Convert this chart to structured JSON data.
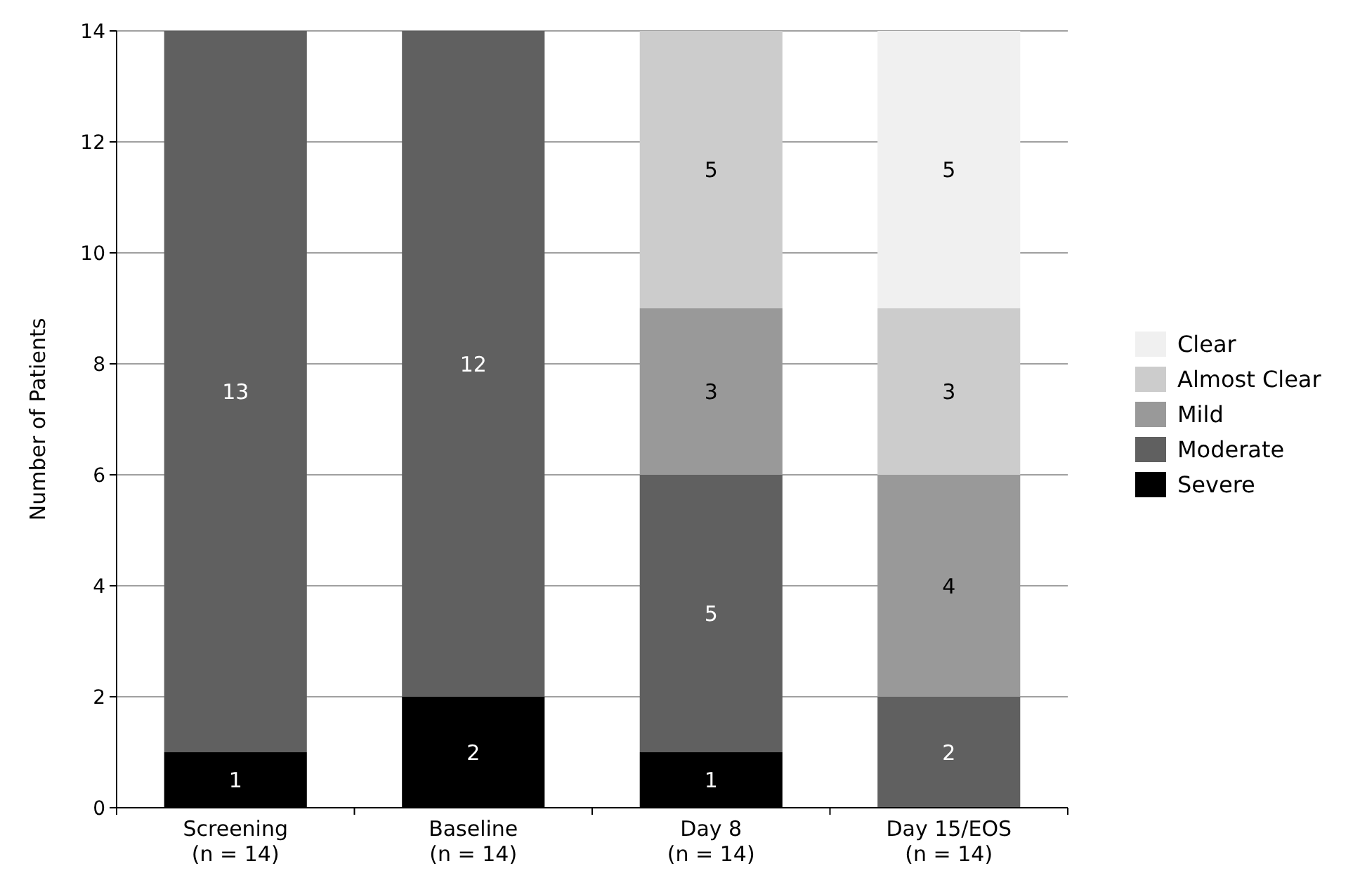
{
  "chart_data": {
    "type": "bar",
    "ylabel": "Number of Patients",
    "categories": [
      "Screening\n(n = 14)",
      "Baseline\n(n = 14)",
      "Day 8\n(n = 14)",
      "Day 15/EOS\n(n = 14)"
    ],
    "series": [
      {
        "name": "Severe",
        "color": "#000000",
        "values": [
          1,
          2,
          1,
          0
        ],
        "value_labels": [
          "1",
          "2",
          "1",
          null
        ]
      },
      {
        "name": "Moderate",
        "color": "#606060",
        "values": [
          13,
          12,
          5,
          2
        ],
        "value_labels": [
          "13",
          "12",
          "5",
          "2"
        ]
      },
      {
        "name": "Mild",
        "color": "#999999",
        "values": [
          0,
          0,
          3,
          4
        ],
        "value_labels": [
          null,
          null,
          "3",
          "4"
        ]
      },
      {
        "name": "Almost Clear",
        "color": "#cccccc",
        "values": [
          0,
          0,
          5,
          3
        ],
        "value_labels": [
          null,
          null,
          "5",
          "3"
        ]
      },
      {
        "name": "Clear",
        "color": "#f0f0f0",
        "values": [
          0,
          0,
          0,
          5
        ],
        "value_labels": [
          null,
          null,
          null,
          "5"
        ]
      }
    ],
    "stacked": true,
    "ylim": [
      0,
      14
    ],
    "yticks": [
      0,
      2,
      4,
      6,
      8,
      10,
      12,
      14
    ],
    "grid": "y",
    "legend": "right"
  }
}
